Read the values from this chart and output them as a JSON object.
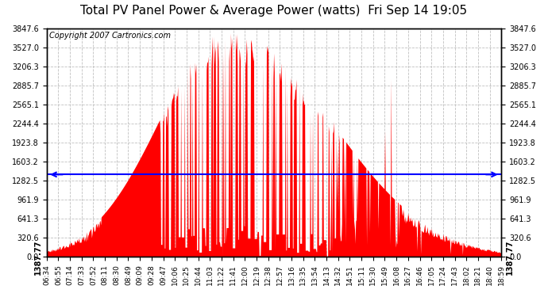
{
  "title": "Total PV Panel Power & Average Power (watts)  Fri Sep 14 19:05",
  "copyright": "Copyright 2007 Cartronics.com",
  "average_value": 1387.77,
  "y_max": 3847.6,
  "y_ticks": [
    0.0,
    320.6,
    641.3,
    961.9,
    1282.5,
    1603.2,
    1923.8,
    2244.4,
    2565.1,
    2885.7,
    3206.3,
    3527.0,
    3847.6
  ],
  "x_labels": [
    "06:34",
    "06:55",
    "07:14",
    "07:33",
    "07:52",
    "08:11",
    "08:30",
    "08:49",
    "09:09",
    "09:28",
    "09:47",
    "10:06",
    "10:25",
    "10:44",
    "11:03",
    "11:22",
    "11:41",
    "12:00",
    "12:19",
    "12:38",
    "12:57",
    "13:16",
    "13:35",
    "13:54",
    "14:13",
    "14:32",
    "14:51",
    "15:11",
    "15:30",
    "15:49",
    "16:08",
    "16:27",
    "16:46",
    "17:05",
    "17:24",
    "17:43",
    "18:02",
    "18:21",
    "18:40",
    "18:59"
  ],
  "fill_color": "#FF0000",
  "line_color": "#0000FF",
  "background_color": "#FFFFFF",
  "grid_color": "#C0C0C0",
  "title_fontsize": 11,
  "copyright_fontsize": 7
}
